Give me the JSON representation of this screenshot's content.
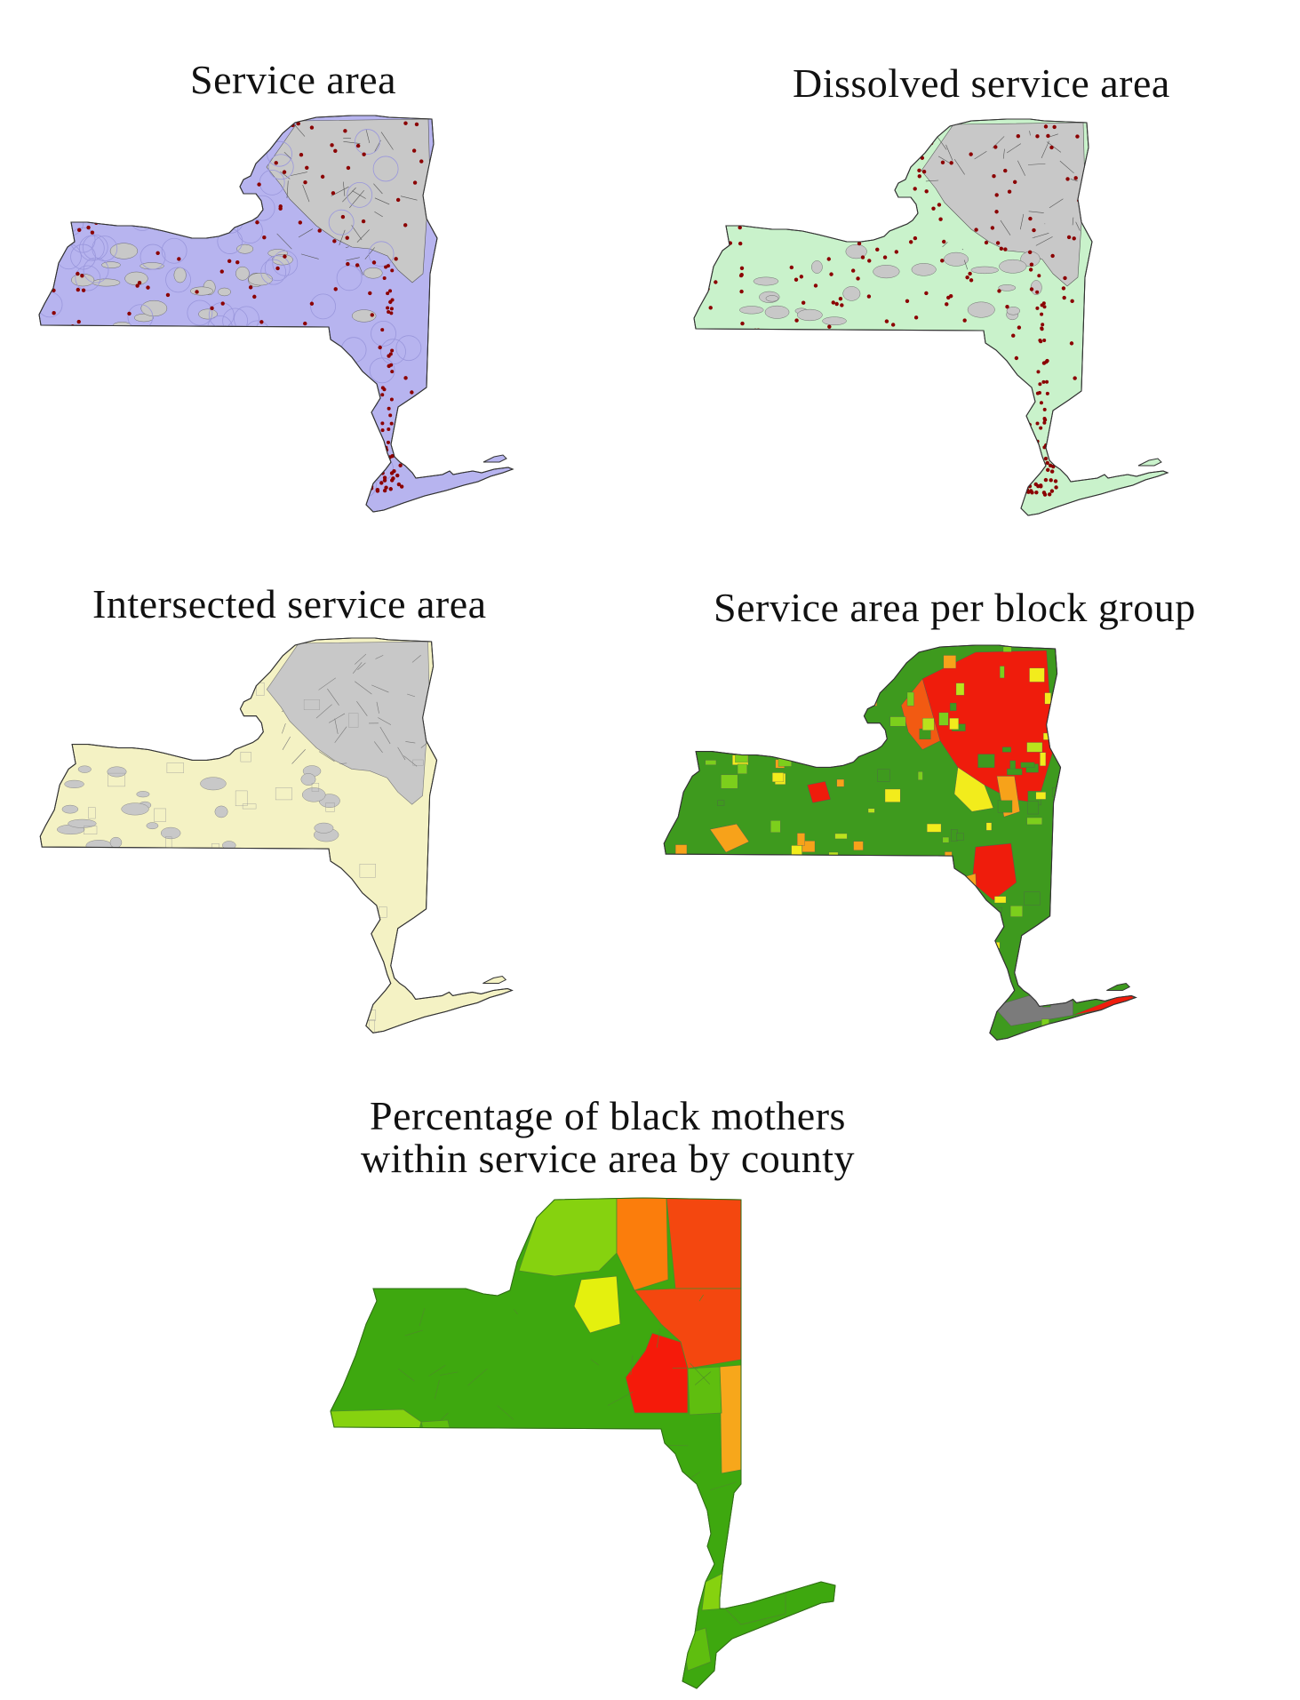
{
  "panels": [
    {
      "id": "p1",
      "title": "Service area",
      "fill": "#b7b4ef",
      "gray": "#c8c8c8",
      "line": "#555555",
      "dot": "#8b0000"
    },
    {
      "id": "p2",
      "title": "Dissolved service area",
      "fill": "#c9f2cb",
      "gray": "#c8c8c8",
      "line": "#555555",
      "dot": "#8b0000"
    },
    {
      "id": "p3",
      "title": "Intersected service area",
      "fill": "#f4f2c4",
      "gray": "#c8c8c8",
      "line": "#777777"
    },
    {
      "id": "p4",
      "title": "Service area per block group",
      "fill": "#3e9a1e",
      "line": "#555555"
    },
    {
      "id": "p5",
      "title_line1": "Percentage of  black mothers",
      "title_line2": "within service area by county",
      "fill": "#3ea80f",
      "line": "#4f8a2a"
    }
  ],
  "block_group_colors": {
    "red": "#ef1c0c",
    "orange_red": "#f25a12",
    "orange": "#f7a21a",
    "yellow": "#f2ec1c",
    "yellow_green": "#b9e31c",
    "light_green": "#7ccf1c",
    "green": "#3e9a1e",
    "gray": "#7b7b7b"
  },
  "county_colors": {
    "red": "#f51a0a",
    "orange_red": "#f4470f",
    "orange": "#fb7d0c",
    "amber": "#f7a71b",
    "yellow": "#e4f00e",
    "yellow_green": "#b4e21a",
    "light_green": "#86d20f",
    "mid_green": "#5fbe0f",
    "green": "#3ea80f"
  }
}
